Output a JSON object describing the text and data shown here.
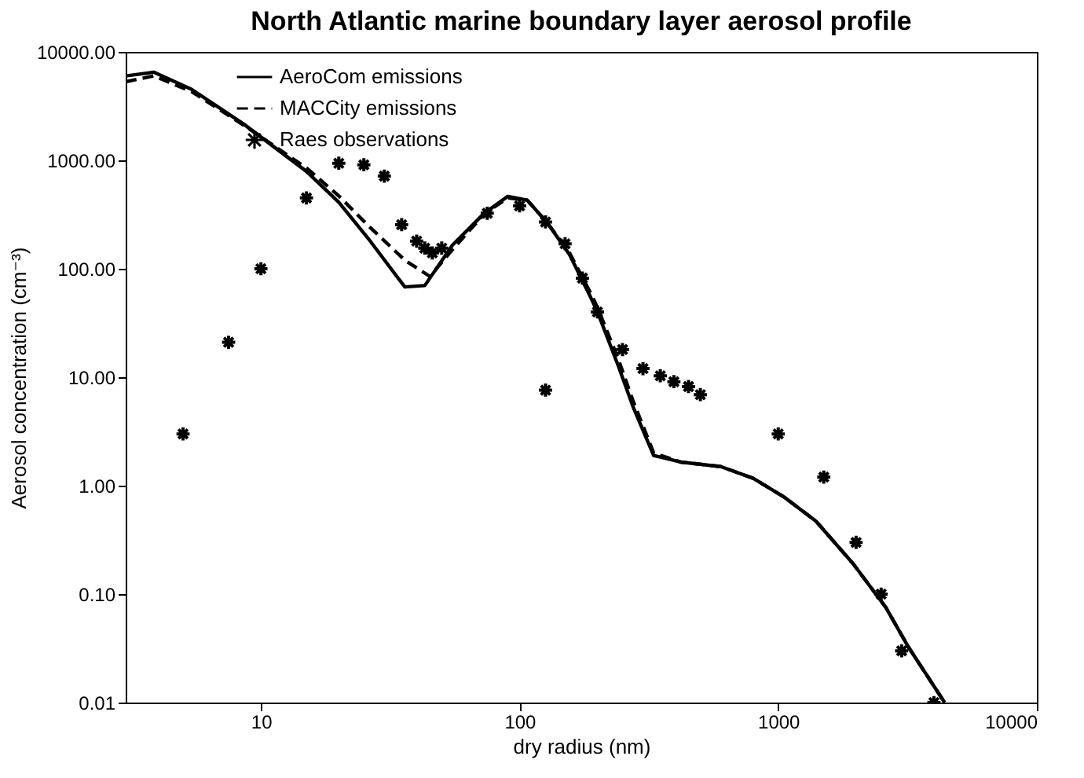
{
  "chart_data": {
    "type": "line",
    "title": "North Atlantic marine boundary layer aerosol profile",
    "xlabel": "dry radius (nm)",
    "ylabel": "Aerosol concentration (cm⁻³)",
    "log": "xy",
    "grid": false,
    "legend": "top left",
    "xlim": [
      3,
      10000
    ],
    "xticks": [
      10,
      100,
      1000,
      10000
    ],
    "ylim": [
      0.01,
      10000
    ],
    "yticks": [
      {
        "value": 0.01,
        "label": "0.01"
      },
      {
        "value": 0.1,
        "label": "0.10"
      },
      {
        "value": 1,
        "label": "1.00"
      },
      {
        "value": 10,
        "label": "10.00"
      },
      {
        "value": 100,
        "label": "100.00"
      },
      {
        "value": 1000,
        "label": "1000.00"
      },
      {
        "value": 10000,
        "label": "10000.00"
      }
    ],
    "series": [
      {
        "name": "AeroCom emissions",
        "line_style": "solid",
        "color": "#000000",
        "x": [
          3,
          3.85,
          5.4,
          8.6,
          15,
          20,
          26,
          36,
          43,
          55,
          73,
          90,
          107,
          128,
          156,
          188,
          200,
          240,
          275,
          330,
          420,
          600,
          800,
          1050,
          1400,
          1950,
          2600,
          3200,
          4400
        ],
        "values": [
          6000,
          6500,
          4500,
          2150,
          790,
          410,
          190,
          68,
          70,
          165,
          325,
          465,
          430,
          265,
          135,
          55,
          40,
          13,
          5.3,
          1.9,
          1.65,
          1.5,
          1.17,
          0.79,
          0.47,
          0.19,
          0.076,
          0.032,
          0.01
        ]
      },
      {
        "name": "MACCity emissions",
        "line_style": "dashed",
        "color": "#000000",
        "x": [
          3,
          3.85,
          5.4,
          8.6,
          15,
          20,
          26,
          36,
          45,
          55,
          73,
          90,
          107,
          128,
          156,
          188,
          200,
          240,
          275,
          330,
          420,
          600,
          800,
          1050,
          1400,
          1950,
          2600,
          3200,
          4400
        ],
        "values": [
          5300,
          6000,
          4300,
          2100,
          850,
          470,
          250,
          120,
          85,
          150,
          320,
          450,
          430,
          265,
          140,
          60,
          44,
          15,
          6,
          2.0,
          1.65,
          1.5,
          1.17,
          0.79,
          0.47,
          0.19,
          0.076,
          0.032,
          0.01
        ]
      },
      {
        "name": "Raes observations",
        "type": "scatter",
        "marker": "cross",
        "color": "#000000",
        "x": [
          5,
          7.5,
          10,
          15,
          20,
          25,
          30,
          35,
          40,
          43,
          46,
          50,
          75,
          100,
          126,
          126,
          150,
          175,
          200,
          250,
          300,
          350,
          395,
          450,
          500,
          1000,
          1500,
          2000,
          2500,
          3000,
          4000
        ],
        "values": [
          3.0,
          21,
          100,
          450,
          940,
          910,
          715,
          255,
          180,
          155,
          140,
          155,
          325,
          380,
          270,
          7.6,
          170,
          82,
          40,
          18,
          12,
          10.3,
          9.1,
          8.2,
          6.9,
          3.0,
          1.2,
          0.3,
          0.1,
          0.03,
          0.01
        ]
      }
    ]
  }
}
